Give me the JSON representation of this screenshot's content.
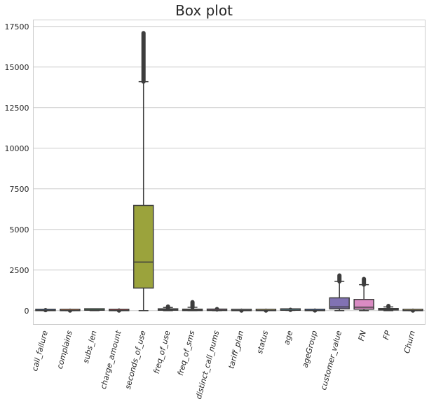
{
  "chart_data": {
    "type": "box",
    "title": "Box plot",
    "xlabel": "",
    "ylabel": "",
    "ylim": [
      -850,
      17900
    ],
    "yticks": [
      0,
      2500,
      5000,
      7500,
      10000,
      12500,
      15000,
      17500
    ],
    "ytick_labels": [
      "0",
      "2500",
      "5000",
      "7500",
      "10000",
      "12500",
      "15000",
      "17500"
    ],
    "grid": "horizontal",
    "categories": [
      "call_failure",
      "complains",
      "subs_len",
      "charge_amount",
      "seconds_of_use",
      "freq_of_use",
      "freq_of_sms",
      "distinct_call_nums",
      "tariff_plan",
      "status",
      "age",
      "ageGroup",
      "customer_value",
      "FN",
      "FP",
      "Churn"
    ],
    "boxes": [
      {
        "label": "call_failure",
        "color": "#4c72b0",
        "min": 0,
        "q1": 1,
        "median": 6,
        "q3": 12,
        "max": 30,
        "flier_max": 36
      },
      {
        "label": "complains",
        "color": "#dd8452",
        "min": 0,
        "q1": 0,
        "median": 0,
        "q3": 0,
        "max": 0,
        "flier_max": 1
      },
      {
        "label": "subs_len",
        "color": "#55a868",
        "min": 3,
        "q1": 30,
        "median": 35,
        "q3": 38,
        "max": 47,
        "flier_max": 47
      },
      {
        "label": "charge_amount",
        "color": "#c44e52",
        "min": 0,
        "q1": 0,
        "median": 0,
        "q3": 1,
        "max": 2,
        "flier_max": 10
      },
      {
        "label": "seconds_of_use",
        "color": "#9ba33c",
        "min": 0,
        "q1": 1391,
        "median": 2990,
        "q3": 6478,
        "max": 14100,
        "flier_max": 17090
      },
      {
        "label": "freq_of_use",
        "color": "#8172b3",
        "min": 0,
        "q1": 27,
        "median": 54,
        "q3": 95,
        "max": 196,
        "flier_max": 255
      },
      {
        "label": "freq_of_sms",
        "color": "#937860",
        "min": 0,
        "q1": 6,
        "median": 21,
        "q3": 87,
        "max": 207,
        "flier_max": 522
      },
      {
        "label": "distinct_call_nums",
        "color": "#da8bc3",
        "min": 0,
        "q1": 10,
        "median": 21,
        "q3": 34,
        "max": 70,
        "flier_max": 97
      },
      {
        "label": "tariff_plan",
        "color": "#8c8c8c",
        "min": 1,
        "q1": 1,
        "median": 1,
        "q3": 1,
        "max": 1,
        "flier_max": 2
      },
      {
        "label": "status",
        "color": "#ccb974",
        "min": 1,
        "q1": 1,
        "median": 1,
        "q3": 1,
        "max": 1,
        "flier_max": 2
      },
      {
        "label": "age",
        "color": "#64b5cd",
        "min": 15,
        "q1": 25,
        "median": 30,
        "q3": 30,
        "max": 45,
        "flier_max": 55
      },
      {
        "label": "ageGroup",
        "color": "#4c72b0",
        "min": 1,
        "q1": 2,
        "median": 3,
        "q3": 3,
        "max": 4,
        "flier_max": 5
      },
      {
        "label": "customer_value",
        "color": "#8172b3",
        "min": 0,
        "q1": 114,
        "median": 228,
        "q3": 789,
        "max": 1800,
        "flier_max": 2165
      },
      {
        "label": "FN",
        "color": "#da8bc3",
        "min": 0,
        "q1": 90,
        "median": 210,
        "q3": 690,
        "max": 1600,
        "flier_max": 1950
      },
      {
        "label": "FP",
        "color": "#937860",
        "min": 0,
        "q1": 40,
        "median": 90,
        "q3": 130,
        "max": 230,
        "flier_max": 290
      },
      {
        "label": "Churn",
        "color": "#ccb974",
        "min": 0,
        "q1": 0,
        "median": 0,
        "q3": 0,
        "max": 0,
        "flier_max": 1
      }
    ]
  }
}
